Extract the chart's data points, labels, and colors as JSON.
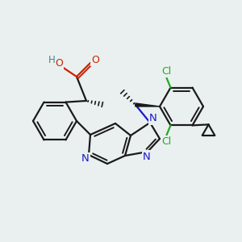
{
  "bg_color": "#eaf0f0",
  "C": "#1a1a1a",
  "N": "#1a1acc",
  "O": "#cc2200",
  "Cl": "#22aa22",
  "H_col": "#448888",
  "figsize": [
    3.0,
    3.0
  ],
  "dpi": 100
}
